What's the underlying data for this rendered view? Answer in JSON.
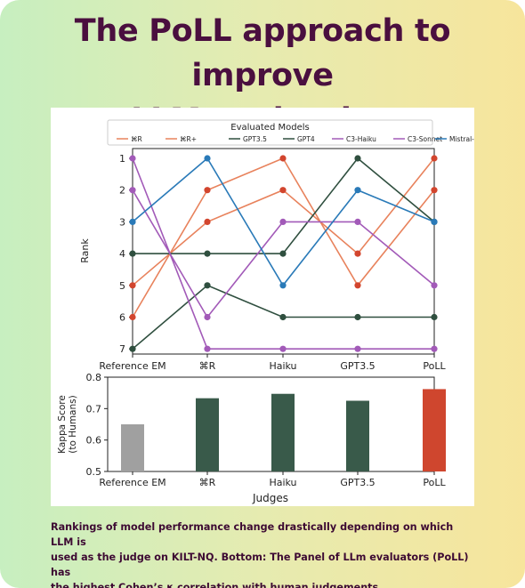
{
  "header": {
    "title_line1": "The PoLL approach to improve",
    "title_line2": "LLM evaluation"
  },
  "caption": {
    "line1": "Rankings of model performance change drastically depending on which LLM is",
    "line2": "used as the judge on KILT-NQ. Bottom: The Panel of LLm evaluators (PoLL) has",
    "line3": "the highest Cohen’s κ correlation with human judgements."
  },
  "chart_data": [
    {
      "type": "line",
      "legend_title": "Evaluated Models",
      "legend_placement": "top",
      "categories": [
        "Reference EM",
        "⌘R",
        "Haiku",
        "GPT3.5",
        "PoLL"
      ],
      "ylabel": "Rank",
      "yticks": [
        "1",
        "2",
        "3",
        "4",
        "5",
        "6",
        "7"
      ],
      "ylim": [
        1,
        7
      ],
      "y_inverted": true,
      "series": [
        {
          "name": "⌘R",
          "color": "#e8825c",
          "values": [
            5,
            3,
            2,
            4,
            1
          ]
        },
        {
          "name": "⌘R+",
          "color": "#e8825c",
          "values": [
            6,
            2,
            1,
            5,
            2
          ]
        },
        {
          "name": "GPT3.5",
          "color": "#2f4f3f",
          "values": [
            7,
            5,
            6,
            6,
            6
          ]
        },
        {
          "name": "GPT4",
          "color": "#2f4f3f",
          "values": [
            4,
            4,
            4,
            1,
            3
          ]
        },
        {
          "name": "C3-Haiku",
          "color": "#a25ab8",
          "values": [
            1,
            7,
            7,
            7,
            7
          ]
        },
        {
          "name": "C3-Sonnet",
          "color": "#a25ab8",
          "values": [
            2,
            6,
            3,
            3,
            5
          ]
        },
        {
          "name": "Mistral-L",
          "color": "#2a7ab8",
          "values": [
            3,
            1,
            5,
            2,
            3
          ]
        }
      ],
      "end_marker_color": "#d2452e"
    },
    {
      "type": "bar",
      "categories": [
        "Reference EM",
        "⌘R",
        "Haiku",
        "GPT3.5",
        "PoLL"
      ],
      "values": [
        0.65,
        0.733,
        0.747,
        0.725,
        0.762
      ],
      "colors": [
        "#a0a0a0",
        "#395a4a",
        "#395a4a",
        "#395a4a",
        "#cf462e"
      ],
      "xlabel": "Judges",
      "ylabel": "Kappa Score",
      "ylabel2": "(to Humans)",
      "yticks": [
        "0.5",
        "0.6",
        "0.7",
        "0.8"
      ],
      "ylim": [
        0.5,
        0.8
      ]
    }
  ]
}
